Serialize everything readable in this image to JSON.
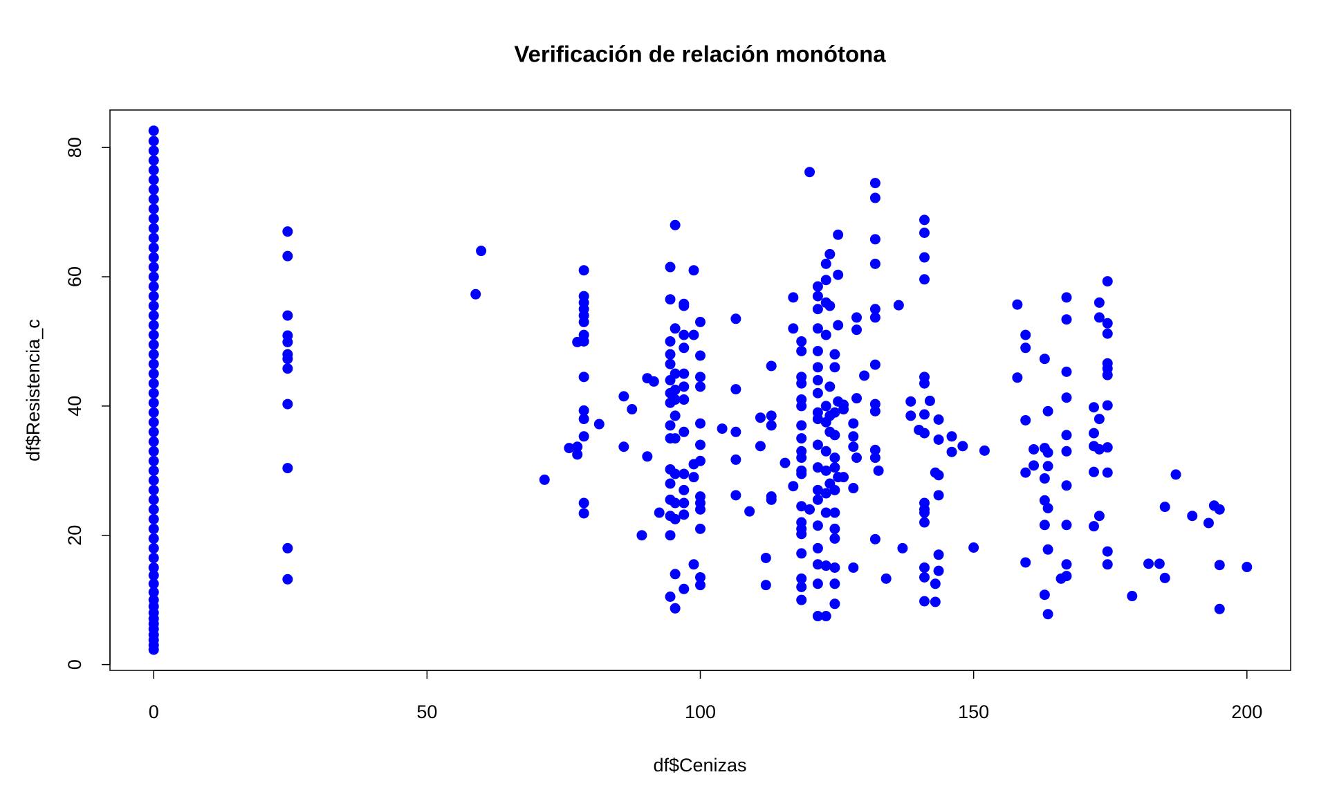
{
  "chart_data": {
    "type": "scatter",
    "title": "Verificación de relación monótona",
    "x_label": "df$Cenizas",
    "y_label": "df$Resistencia_c",
    "color": "#0000ff",
    "xlim": [
      -8,
      208
    ],
    "ylim": [
      -0.9,
      85.8
    ],
    "xticks": [
      0,
      50,
      100,
      150,
      200
    ],
    "yticks": [
      0,
      20,
      40,
      60,
      80
    ],
    "grid": false,
    "x": [
      0,
      0,
      0,
      0,
      0,
      0,
      0,
      0,
      0,
      0,
      0,
      0,
      0,
      0,
      0,
      0,
      0,
      0,
      0,
      0,
      0,
      0,
      0,
      0,
      0,
      0,
      0,
      0,
      0,
      0,
      0,
      0,
      0,
      0,
      0,
      0,
      0,
      0,
      0,
      0,
      0,
      0,
      0,
      0,
      0,
      0,
      0,
      0,
      0,
      0,
      0,
      0,
      0,
      0,
      0,
      0,
      0,
      0,
      0,
      24.5,
      24.5,
      24.5,
      24.5,
      24.5,
      24.5,
      24.5,
      24.5,
      24.5,
      24.5,
      24.5,
      24.5,
      58.9,
      59.9,
      71.5,
      76,
      77.5,
      77.5,
      77.5,
      78.7,
      78.7,
      78.7,
      78.7,
      78.7,
      78.7,
      78.7,
      78.7,
      78.7,
      78.7,
      78.7,
      78.7,
      78.7,
      78.7,
      81.5,
      86,
      86,
      87.5,
      89.3,
      90.3,
      90.3,
      91.5,
      92.5,
      94.5,
      94.5,
      94.5,
      94.5,
      94.5,
      94.5,
      94.5,
      94.5,
      94.5,
      94.5,
      94.5,
      94.5,
      94.5,
      94.5,
      94.5,
      94.5,
      95.4,
      95.4,
      95.4,
      95.4,
      95.4,
      95.4,
      95.4,
      95.4,
      95.4,
      95.4,
      95.4,
      95.4,
      97,
      97,
      97,
      97,
      97,
      97,
      97,
      97,
      97,
      97,
      97,
      97,
      97,
      98.8,
      98.8,
      98.8,
      98.8,
      98.8,
      100,
      100,
      100,
      100,
      100,
      100,
      100,
      100,
      100,
      100,
      100,
      100,
      100,
      104,
      106.5,
      106.5,
      106.5,
      106.5,
      106.5,
      109,
      111,
      111,
      112,
      112,
      113,
      113,
      113,
      113,
      113,
      115.5,
      117,
      117,
      117,
      118.5,
      118.5,
      118.5,
      118.5,
      118.5,
      118.5,
      118.5,
      118.5,
      118.5,
      118.5,
      118.5,
      118.5,
      118.5,
      118.5,
      118.5,
      118.5,
      118.5,
      118.5,
      118.5,
      118.5,
      120,
      120,
      121.5,
      121.5,
      121.5,
      121.5,
      121.5,
      121.5,
      121.5,
      121.5,
      121.5,
      121.5,
      121.5,
      121.5,
      121.5,
      121.5,
      121.5,
      121.5,
      121.5,
      121.5,
      121.5,
      123,
      123,
      123,
      123,
      123,
      123,
      123,
      123,
      123,
      123,
      123,
      123,
      123.7,
      123.7,
      123.7,
      123.7,
      123.7,
      123.7,
      124.6,
      124.6,
      124.6,
      124.6,
      124.6,
      124.6,
      124.6,
      124.6,
      124.6,
      124.6,
      124.6,
      124.6,
      124.6,
      125.2,
      125.2,
      125.2,
      125.2,
      125.2,
      126.2,
      126.2,
      126.2,
      128,
      128,
      128,
      128,
      128,
      128.6,
      128.6,
      128.6,
      128.6,
      130,
      132,
      132,
      132,
      132,
      132,
      132,
      132,
      132,
      132,
      132,
      132,
      132,
      132.6,
      134,
      136.3,
      137,
      138.5,
      138.5,
      140,
      141,
      141,
      141,
      141,
      141,
      141,
      141,
      141,
      141,
      141,
      141,
      141,
      141,
      141,
      141,
      142,
      143,
      143,
      143,
      143.6,
      143.6,
      143.6,
      143.6,
      143.6,
      143.6,
      146,
      146,
      148,
      150,
      152,
      158,
      158,
      159.5,
      159.5,
      159.5,
      159.5,
      159.5,
      161,
      161,
      163,
      163,
      163,
      163,
      163,
      163,
      163.6,
      163.6,
      163.6,
      163.6,
      163.6,
      163.6,
      166,
      167,
      167,
      167,
      167,
      167,
      167,
      167,
      167,
      167,
      167,
      172,
      172,
      172,
      172,
      172,
      173,
      173,
      173,
      173,
      173,
      174.5,
      174.5,
      174.5,
      174.5,
      174.5,
      174.5,
      174.5,
      174.5,
      174.5,
      174.5,
      174.5,
      179,
      182,
      184,
      185,
      185,
      187,
      190,
      193,
      194,
      195,
      195,
      195,
      200
    ],
    "values": [
      2.3,
      3.0,
      3.8,
      4.6,
      5.5,
      6.3,
      7.1,
      8.0,
      9.0,
      10.0,
      11.2,
      12.5,
      13.8,
      15.0,
      16.5,
      18.0,
      19.5,
      21.0,
      22.5,
      24.0,
      25.5,
      27.0,
      28.5,
      30.0,
      31.5,
      33.0,
      34.5,
      36.0,
      37.5,
      39.0,
      40.5,
      42.0,
      43.5,
      45.0,
      46.5,
      48.0,
      49.5,
      51.0,
      52.5,
      54.0,
      55.5,
      57.0,
      58.5,
      60.0,
      61.5,
      63.0,
      64.5,
      66.0,
      67.5,
      69.0,
      70.5,
      72.0,
      73.5,
      75.0,
      76.5,
      78.0,
      79.5,
      81.0,
      82.6,
      67,
      63.2,
      54,
      50.9,
      49.9,
      48,
      47.3,
      45.8,
      40.3,
      30.4,
      18,
      13.2,
      57.3,
      64,
      28.6,
      33.5,
      33.7,
      32.5,
      49.9,
      61,
      57,
      56,
      55,
      54,
      53,
      51,
      50,
      44.5,
      39.3,
      38,
      35.3,
      25,
      23.4,
      37.2,
      41.5,
      33.7,
      39.5,
      20,
      32.2,
      44.3,
      43.8,
      23.5,
      61.5,
      56.5,
      50,
      48,
      46.5,
      44,
      42,
      40.5,
      37,
      35,
      30.2,
      28,
      25.5,
      23,
      20,
      10.5,
      68,
      52,
      45,
      42.5,
      41,
      38.5,
      35,
      29.5,
      25,
      22.5,
      14,
      8.7,
      55.5,
      51,
      49,
      45,
      43,
      41,
      36,
      29.5,
      27,
      25,
      23.2,
      11.7,
      55.8,
      61,
      51,
      31,
      29,
      15.5,
      53,
      47.8,
      44.5,
      43,
      37.3,
      34,
      31.5,
      26,
      25,
      24,
      21,
      13.5,
      12.3,
      36.5,
      26.2,
      53.5,
      42.6,
      36,
      31.7,
      23.7,
      33.8,
      38.2,
      16.5,
      12.3,
      46.2,
      38.5,
      37,
      26,
      25.5,
      31.2,
      27.6,
      56.8,
      52,
      50,
      48.5,
      44.5,
      43.5,
      41,
      40,
      37,
      35,
      33,
      32,
      30,
      29.5,
      24.5,
      22,
      21,
      20.2,
      17.2,
      13.3,
      12,
      10,
      76.2,
      24,
      58.5,
      57,
      55,
      52,
      48.5,
      46,
      44,
      42,
      39,
      38,
      34,
      30.5,
      27,
      25.5,
      21.5,
      18,
      15.5,
      12.5,
      7.5,
      62,
      59.5,
      56,
      51,
      40,
      37.5,
      33,
      30,
      26.5,
      23.5,
      15.3,
      7.5,
      63.5,
      55.5,
      43,
      38.5,
      36,
      28,
      48,
      46,
      39,
      35.5,
      32,
      30.5,
      27,
      23.5,
      21,
      19.5,
      15,
      12.5,
      9.4,
      66.5,
      60.3,
      52.5,
      40.7,
      29,
      39.5,
      29,
      40.2,
      35.3,
      33.7,
      27.3,
      37.3,
      15,
      53.7,
      51.8,
      41.2,
      32,
      44.7,
      74.5,
      72.2,
      65.8,
      62,
      55,
      53.7,
      46.4,
      40.3,
      39.2,
      33.2,
      32,
      19.4,
      30,
      13.3,
      55.6,
      18,
      40.7,
      38.5,
      36.3,
      68.8,
      66.8,
      63,
      59.6,
      44.5,
      43.5,
      38.7,
      35.8,
      25,
      24,
      23.5,
      22,
      15,
      13.5,
      9.8,
      40.8,
      29.7,
      12.5,
      9.7,
      37.9,
      34.8,
      29.3,
      26.2,
      17,
      14.5,
      35.3,
      32.9,
      33.8,
      18.1,
      33.1,
      55.7,
      44.4,
      51,
      49,
      37.8,
      29.7,
      15.8,
      33.3,
      30.8,
      47.3,
      33.5,
      28.8,
      25.4,
      21.6,
      10.8,
      39.2,
      32.8,
      30.7,
      24.2,
      17.8,
      7.8,
      13.3,
      56.8,
      53.4,
      45.3,
      41.3,
      35.5,
      33,
      27.7,
      21.6,
      15.5,
      13.7,
      39.8,
      35.8,
      33.8,
      29.8,
      21.4,
      56,
      53.7,
      38,
      33.3,
      23,
      59.3,
      52.8,
      51.2,
      46.6,
      45.8,
      44.8,
      40.1,
      33.6,
      29.7,
      17.5,
      15.5,
      10.6,
      15.6,
      15.6,
      24.4,
      13.4,
      29.4,
      23,
      21.9,
      24.6,
      24,
      15.4,
      8.6,
      15.1
    ]
  }
}
